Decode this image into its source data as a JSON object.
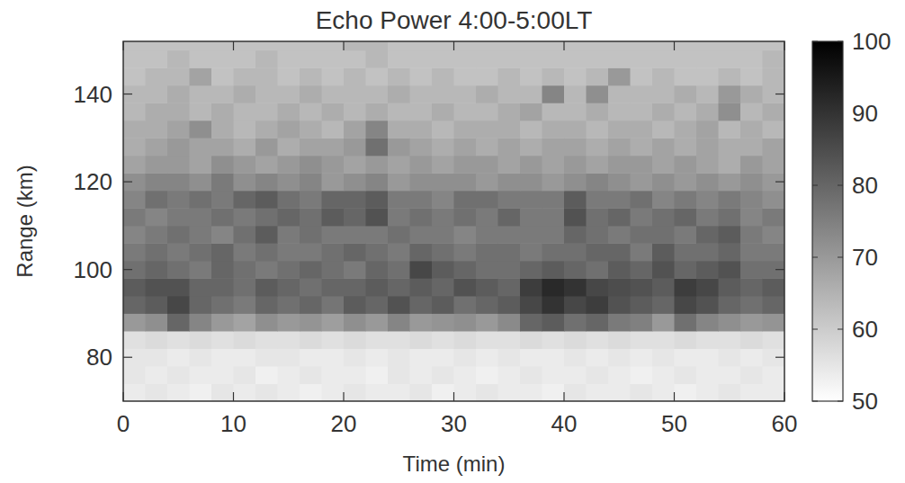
{
  "chart_data": {
    "type": "heatmap",
    "title": "Echo Power 4:00-5:00LT",
    "x_label": "Time (min)",
    "y_label": "Range (km)",
    "xlim": [
      0,
      60
    ],
    "ylim": [
      70,
      152
    ],
    "xticks": [
      0,
      10,
      20,
      30,
      40,
      50,
      60
    ],
    "yticks": [
      80,
      100,
      120,
      140
    ],
    "x_edges": [
      0,
      2,
      4,
      6,
      8,
      10,
      12,
      14,
      16,
      18,
      20,
      22,
      24,
      26,
      28,
      30,
      32,
      34,
      36,
      38,
      40,
      42,
      44,
      46,
      48,
      50,
      52,
      54,
      56,
      58,
      60
    ],
    "y_edges": [
      70,
      74,
      78,
      82,
      86,
      90,
      94,
      98,
      102,
      106,
      110,
      114,
      118,
      122,
      126,
      130,
      134,
      138,
      142,
      146,
      150,
      152
    ],
    "values": [
      [
        54,
        55,
        54,
        53,
        55,
        54,
        55,
        54,
        53,
        54,
        55,
        54,
        54,
        55,
        53,
        54,
        55,
        54,
        54,
        53,
        55,
        54,
        54,
        55,
        54,
        53,
        54,
        55,
        54,
        54
      ],
      [
        55,
        54,
        55,
        54,
        54,
        55,
        53,
        54,
        55,
        54,
        54,
        53,
        55,
        54,
        55,
        54,
        53,
        54,
        55,
        54,
        54,
        55,
        54,
        53,
        54,
        55,
        54,
        54,
        55,
        54
      ],
      [
        55,
        55,
        54,
        55,
        54,
        54,
        55,
        55,
        54,
        54,
        55,
        54,
        55,
        54,
        54,
        55,
        54,
        55,
        54,
        54,
        55,
        54,
        55,
        54,
        55,
        54,
        54,
        55,
        54,
        55
      ],
      [
        56,
        57,
        56,
        57,
        56,
        57,
        56,
        56,
        57,
        56,
        57,
        56,
        56,
        57,
        56,
        57,
        56,
        56,
        57,
        56,
        57,
        56,
        57,
        56,
        56,
        57,
        56,
        56,
        57,
        56
      ],
      [
        70,
        72,
        80,
        74,
        70,
        68,
        72,
        70,
        71,
        69,
        72,
        70,
        74,
        70,
        71,
        72,
        70,
        73,
        80,
        82,
        78,
        80,
        76,
        75,
        70,
        78,
        74,
        72,
        70,
        71
      ],
      [
        80,
        82,
        86,
        80,
        78,
        76,
        80,
        78,
        80,
        77,
        82,
        80,
        84,
        80,
        82,
        78,
        80,
        82,
        86,
        90,
        86,
        88,
        84,
        82,
        80,
        86,
        84,
        80,
        78,
        80
      ],
      [
        82,
        84,
        84,
        80,
        80,
        78,
        82,
        80,
        78,
        80,
        80,
        82,
        80,
        82,
        80,
        84,
        82,
        80,
        88,
        92,
        90,
        86,
        85,
        84,
        82,
        88,
        86,
        82,
        80,
        82
      ],
      [
        78,
        80,
        78,
        76,
        80,
        78,
        76,
        78,
        80,
        78,
        76,
        80,
        78,
        86,
        82,
        80,
        78,
        78,
        80,
        82,
        80,
        78,
        82,
        80,
        84,
        80,
        82,
        84,
        78,
        78
      ],
      [
        76,
        78,
        76,
        78,
        80,
        76,
        78,
        76,
        76,
        78,
        80,
        78,
        76,
        80,
        78,
        76,
        78,
        78,
        76,
        78,
        78,
        80,
        80,
        76,
        82,
        78,
        78,
        80,
        76,
        76
      ],
      [
        74,
        76,
        78,
        76,
        74,
        78,
        82,
        76,
        78,
        76,
        76,
        76,
        78,
        76,
        76,
        74,
        76,
        76,
        76,
        76,
        80,
        78,
        76,
        78,
        78,
        76,
        80,
        82,
        76,
        74
      ],
      [
        76,
        74,
        76,
        76,
        78,
        76,
        78,
        80,
        78,
        82,
        80,
        84,
        76,
        78,
        76,
        78,
        76,
        80,
        76,
        76,
        84,
        78,
        80,
        76,
        78,
        80,
        76,
        78,
        74,
        76
      ],
      [
        74,
        78,
        76,
        78,
        76,
        80,
        82,
        78,
        76,
        80,
        80,
        82,
        76,
        76,
        74,
        78,
        78,
        76,
        76,
        76,
        82,
        76,
        76,
        78,
        74,
        76,
        74,
        76,
        74,
        72
      ],
      [
        72,
        74,
        74,
        72,
        76,
        72,
        74,
        72,
        74,
        70,
        72,
        74,
        70,
        72,
        72,
        72,
        70,
        72,
        72,
        70,
        72,
        74,
        72,
        70,
        72,
        70,
        72,
        70,
        72,
        70
      ],
      [
        68,
        70,
        70,
        68,
        72,
        70,
        68,
        70,
        72,
        70,
        68,
        70,
        68,
        70,
        68,
        70,
        70,
        68,
        70,
        68,
        70,
        68,
        70,
        70,
        68,
        70,
        68,
        66,
        70,
        68
      ],
      [
        66,
        68,
        70,
        68,
        68,
        66,
        70,
        66,
        68,
        68,
        70,
        78,
        70,
        68,
        66,
        68,
        66,
        68,
        66,
        68,
        68,
        66,
        68,
        66,
        68,
        66,
        68,
        66,
        66,
        68
      ],
      [
        66,
        66,
        68,
        72,
        66,
        64,
        66,
        68,
        66,
        64,
        68,
        74,
        66,
        66,
        64,
        66,
        66,
        66,
        64,
        66,
        66,
        64,
        66,
        66,
        64,
        66,
        68,
        64,
        66,
        64
      ],
      [
        64,
        66,
        66,
        64,
        66,
        64,
        64,
        66,
        64,
        66,
        64,
        66,
        64,
        64,
        66,
        64,
        64,
        66,
        68,
        64,
        64,
        66,
        64,
        64,
        66,
        64,
        66,
        72,
        64,
        66
      ],
      [
        64,
        64,
        66,
        64,
        64,
        66,
        64,
        64,
        66,
        64,
        64,
        64,
        66,
        64,
        64,
        64,
        66,
        64,
        64,
        74,
        64,
        72,
        64,
        64,
        64,
        66,
        64,
        70,
        66,
        64
      ],
      [
        62,
        64,
        64,
        68,
        62,
        64,
        64,
        62,
        64,
        62,
        64,
        62,
        64,
        62,
        64,
        62,
        62,
        64,
        62,
        64,
        62,
        64,
        70,
        62,
        64,
        62,
        62,
        64,
        62,
        64
      ],
      [
        62,
        62,
        64,
        62,
        62,
        62,
        64,
        62,
        62,
        62,
        62,
        64,
        62,
        62,
        62,
        62,
        62,
        62,
        62,
        62,
        62,
        62,
        62,
        62,
        62,
        62,
        62,
        62,
        62,
        64
      ],
      [
        62,
        62,
        62,
        62,
        62,
        62,
        62,
        62,
        62,
        62,
        64,
        64,
        62,
        62,
        62,
        62,
        62,
        62,
        62,
        62,
        62,
        62,
        62,
        62,
        62,
        62,
        62,
        62,
        62,
        62
      ]
    ],
    "colorbar_range": [
      50,
      100
    ],
    "colorbar_ticks": [
      50,
      60,
      70,
      80,
      90,
      100
    ]
  }
}
